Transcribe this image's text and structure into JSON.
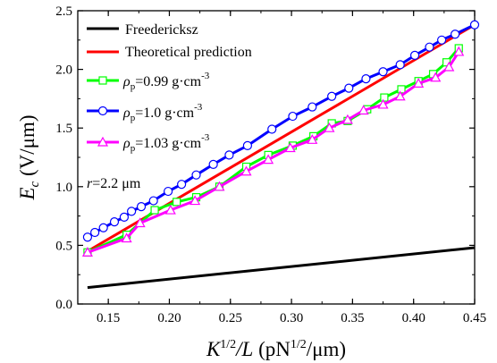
{
  "chart_data": {
    "type": "line",
    "xlabel": "K^{1/2}/L (pN^{1/2}/μm)",
    "ylabel": "E_c (V/μm)",
    "xlim": [
      0.125,
      0.45
    ],
    "ylim": [
      0.0,
      2.5
    ],
    "xticks": [
      "0.15",
      "0.20",
      "0.25",
      "0.30",
      "0.35",
      "0.40",
      "0.45"
    ],
    "yticks": [
      "0.0",
      "0.5",
      "1.0",
      "1.5",
      "2.0",
      "2.5"
    ],
    "grid": false,
    "legend_position": "top-left",
    "annotation": "r=2.2 μm",
    "series": [
      {
        "name": "Freedericksz",
        "color": "#000000",
        "marker": "none",
        "x": [
          0.133,
          0.45
        ],
        "y": [
          0.14,
          0.48
        ]
      },
      {
        "name": "Theoretical prediction",
        "color": "#ff0000",
        "marker": "none",
        "x": [
          0.133,
          0.45
        ],
        "y": [
          0.45,
          2.38
        ]
      },
      {
        "name": "ρp=0.99 g·cm-3",
        "color": "#00ff00",
        "marker": "square",
        "x": [
          0.133,
          0.165,
          0.188,
          0.206,
          0.222,
          0.241,
          0.263,
          0.281,
          0.301,
          0.318,
          0.333,
          0.346,
          0.362,
          0.376,
          0.39,
          0.404,
          0.416,
          0.427,
          0.437
        ],
        "y": [
          0.44,
          0.59,
          0.8,
          0.87,
          0.91,
          1.0,
          1.17,
          1.27,
          1.35,
          1.43,
          1.54,
          1.56,
          1.66,
          1.76,
          1.83,
          1.9,
          1.96,
          2.06,
          2.18
        ]
      },
      {
        "name": "ρp=1.0 g·cm-3",
        "color": "#0000ff",
        "marker": "circle",
        "x": [
          0.133,
          0.139,
          0.146,
          0.155,
          0.163,
          0.169,
          0.177,
          0.187,
          0.199,
          0.21,
          0.222,
          0.236,
          0.249,
          0.264,
          0.284,
          0.301,
          0.317,
          0.333,
          0.347,
          0.361,
          0.375,
          0.389,
          0.401,
          0.413,
          0.423,
          0.434,
          0.45
        ],
        "y": [
          0.57,
          0.61,
          0.65,
          0.7,
          0.74,
          0.79,
          0.83,
          0.88,
          0.96,
          1.02,
          1.1,
          1.19,
          1.27,
          1.35,
          1.49,
          1.6,
          1.68,
          1.77,
          1.84,
          1.92,
          1.98,
          2.04,
          2.12,
          2.19,
          2.25,
          2.3,
          2.38
        ]
      },
      {
        "name": "ρp=1.03 g·cm-3",
        "color": "#ff00ff",
        "marker": "triangle",
        "x": [
          0.133,
          0.165,
          0.176,
          0.201,
          0.221,
          0.241,
          0.263,
          0.281,
          0.299,
          0.317,
          0.331,
          0.346,
          0.359,
          0.375,
          0.389,
          0.404,
          0.418,
          0.429,
          0.437
        ],
        "y": [
          0.44,
          0.56,
          0.69,
          0.8,
          0.88,
          1.0,
          1.13,
          1.23,
          1.33,
          1.4,
          1.5,
          1.57,
          1.65,
          1.7,
          1.77,
          1.88,
          1.93,
          2.02,
          2.15
        ]
      }
    ]
  },
  "legend": {
    "freedericksz": "Freedericksz",
    "theoretical": "Theoretical prediction",
    "rho_symbol": "ρ",
    "rho_sub": "p",
    "val_099": "=0.99 g·cm",
    "val_10": "=1.0 g·cm",
    "val_103": "=1.03 g·cm",
    "exp": "-3"
  },
  "annotation": {
    "r": "r",
    "value": "=2.2 μm"
  },
  "axes": {
    "y_main": "E",
    "y_sub": "c",
    "y_unit": " (V/μm)",
    "x_k": "K",
    "x_sup": "1/2",
    "x_l": "/L (pN",
    "x_sup2": "1/2",
    "x_tail": "/μm)"
  }
}
